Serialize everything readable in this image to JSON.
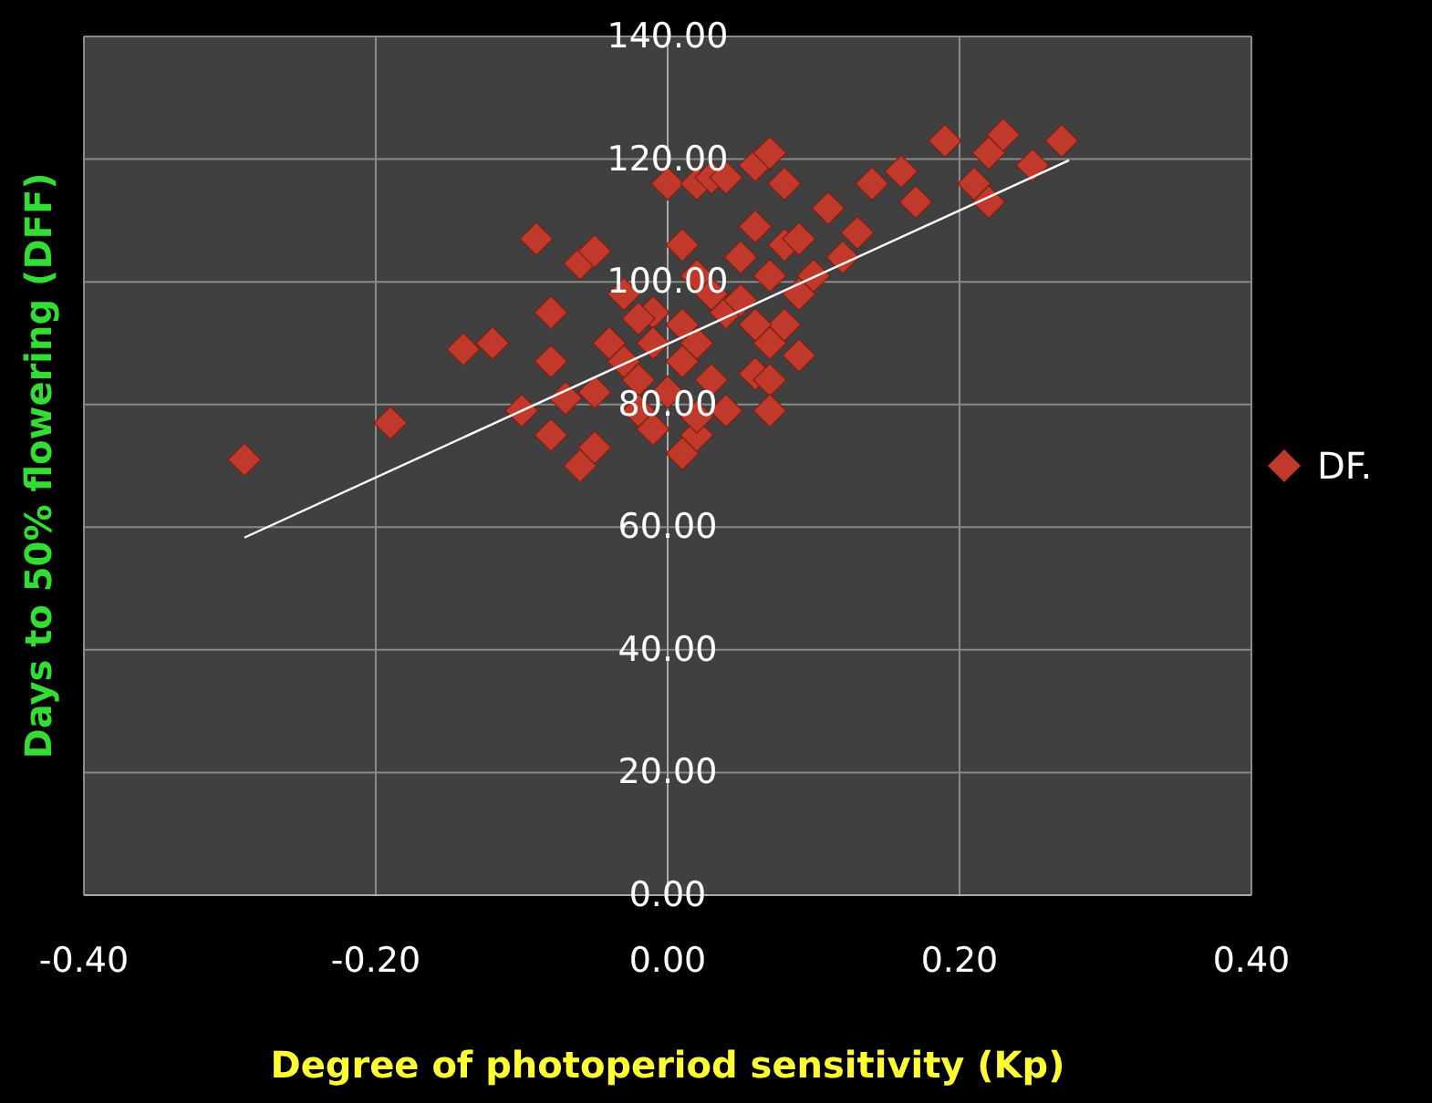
{
  "chart_data": {
    "type": "scatter",
    "xlabel": "Degree of photoperiod sensitivity (Kp)",
    "ylabel": "Days to 50% flowering (DFF)",
    "marker": "diamond",
    "grid": true,
    "legend": "right",
    "xlim": [
      -0.4,
      0.4
    ],
    "ylim": [
      0,
      140
    ],
    "xticks": [
      {
        "value": -0.4,
        "label": "-0.40"
      },
      {
        "value": -0.2,
        "label": "-0.20"
      },
      {
        "value": 0,
        "label": "0.00"
      },
      {
        "value": 0.2,
        "label": "0.20"
      },
      {
        "value": 0.4,
        "label": "0.40"
      }
    ],
    "yticks": [
      {
        "value": 0,
        "label": "0.00"
      },
      {
        "value": 20,
        "label": "20.00"
      },
      {
        "value": 40,
        "label": "40.00"
      },
      {
        "value": 60,
        "label": "60.00"
      },
      {
        "value": 80,
        "label": "80.00"
      },
      {
        "value": 100,
        "label": "100.00"
      },
      {
        "value": 120,
        "label": "120.00"
      },
      {
        "value": 140,
        "label": "140.00"
      }
    ],
    "series": [
      {
        "name": "DF.",
        "color": "#c0392b",
        "x": [
          -0.29,
          -0.19,
          -0.14,
          -0.12,
          -0.1,
          -0.09,
          -0.08,
          -0.08,
          -0.08,
          -0.06,
          -0.05,
          -0.06,
          -0.05,
          -0.03,
          -0.01,
          -0.03,
          -0.02,
          -0.01,
          0.01,
          0.01,
          0,
          0.02,
          0.03,
          0.04,
          0.06,
          0.07,
          0.08,
          0.02,
          0.04,
          0.05,
          0.06,
          0.08,
          0.09,
          0.11,
          0.13,
          0.14,
          0.16,
          0.17,
          0.19,
          0.21,
          0.22,
          0.23,
          0.25,
          0.27,
          0.22,
          0.02,
          0.03,
          0.04,
          0.06,
          0.07,
          0.08,
          0.09,
          0.1,
          0.12,
          0.09,
          0.07,
          0.02,
          0.04,
          -0.02,
          -0.04,
          -0.05,
          -0.07,
          -0.01,
          0.01,
          0.03,
          0.05,
          0.07,
          -0.02,
          0.01,
          0.02,
          0,
          0.07,
          0.06
        ],
        "values": [
          71,
          77,
          89,
          90,
          79,
          107,
          95,
          87,
          75,
          103,
          105,
          70,
          73,
          98,
          95,
          87,
          84,
          76,
          72,
          106,
          116,
          116,
          117,
          117,
          119,
          121,
          116,
          101,
          95,
          104,
          109,
          106,
          107,
          112,
          108,
          116,
          118,
          113,
          123,
          116,
          121,
          124,
          119,
          123,
          113,
          90,
          84,
          79,
          85,
          90,
          93,
          98,
          101,
          104,
          88,
          84,
          75,
          79,
          79,
          90,
          82,
          81,
          90,
          93,
          98,
          97,
          101,
          94,
          87,
          78,
          82,
          79,
          93
        ]
      },
      {
        "type": "line",
        "marker": "none",
        "color": "#ffffff",
        "x": [
          -0.29,
          0.275
        ],
        "values": [
          58.3,
          119.8
        ]
      }
    ]
  }
}
